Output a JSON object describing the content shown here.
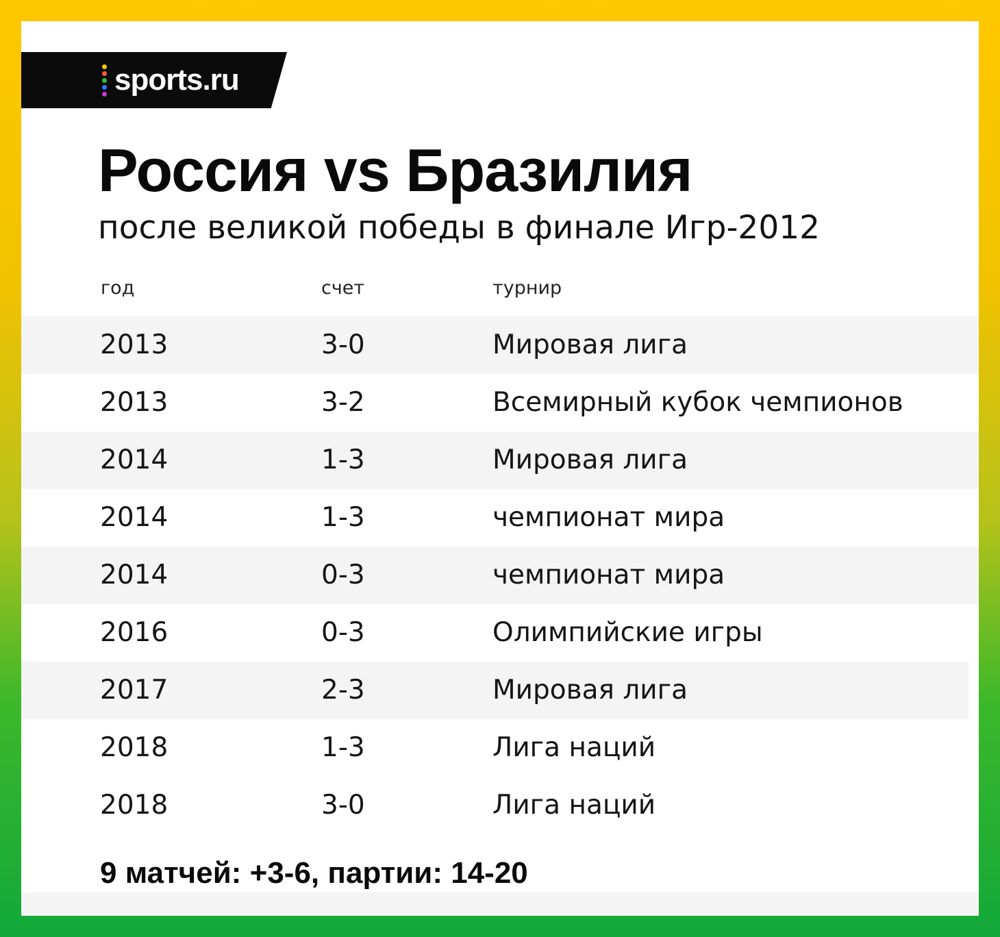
{
  "logo": {
    "text": "sports.ru",
    "dot_colors": [
      "#f7c900",
      "#ff5a3c",
      "#2fbf3a",
      "#2f7bff",
      "#c63ad8"
    ]
  },
  "title": "Россия vs Бразилия",
  "subtitle": "после великой победы в финале Игр-2012",
  "headers": {
    "year": "год",
    "score": "счет",
    "tournament": "турнир"
  },
  "rows": [
    {
      "year": "2013",
      "score": "3-0",
      "tournament": "Мировая лига"
    },
    {
      "year": "2013",
      "score": "3-2",
      "tournament": "Всемирный кубок чемпионов"
    },
    {
      "year": "2014",
      "score": "1-3",
      "tournament": "Мировая лига"
    },
    {
      "year": "2014",
      "score": "1-3",
      "tournament": "чемпионат мира"
    },
    {
      "year": "2014",
      "score": "0-3",
      "tournament": "чемпионат мира"
    },
    {
      "year": "2016",
      "score": "0-3",
      "tournament": "Олимпийские игры"
    },
    {
      "year": "2017",
      "score": "2-3",
      "tournament": "Мировая лига"
    },
    {
      "year": "2018",
      "score": "1-3",
      "tournament": "Лига наций"
    },
    {
      "year": "2018",
      "score": "3-0",
      "tournament": "Лига наций"
    }
  ],
  "summary": "9 матчей: +3-6, партии: 14-20",
  "colors": {
    "frame_top": "#ffc800",
    "frame_bottom": "#12a83a",
    "row_shade": "#f4f4f4"
  }
}
